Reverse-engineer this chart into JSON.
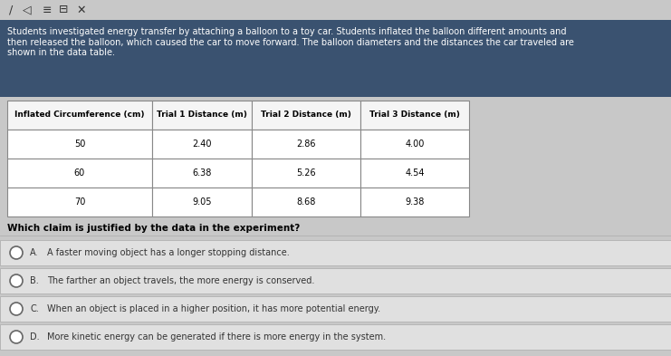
{
  "header_bg": "#3a5270",
  "header_text_color": "#ffffff",
  "header_text": "Students investigated energy transfer by attaching a balloon to a toy car. Students inflated the balloon different amounts and\nthen released the balloon, which caused the car to move forward. The balloon diameters and the distances the car traveled are\nshown in the data table.",
  "table_headers": [
    "Inflated Circumference (cm)",
    "Trial 1 Distance (m)",
    "Trial 2 Distance (m)",
    "Trial 3 Distance (m)"
  ],
  "table_data": [
    [
      "50",
      "2.40",
      "2.86",
      "4.00"
    ],
    [
      "60",
      "6.38",
      "5.26",
      "4.54"
    ],
    [
      "70",
      "9.05",
      "8.68",
      "9.38"
    ]
  ],
  "question": "Which claim is justified by the data in the experiment?",
  "choices": [
    [
      "A.",
      "A faster moving object has a longer stopping distance."
    ],
    [
      "B.",
      "The farther an object travels, the more energy is conserved."
    ],
    [
      "C.",
      "When an object is placed in a higher position, it has more potential energy."
    ],
    [
      "D.",
      "More kinetic energy can be generated if there is more energy in the system."
    ]
  ],
  "bg_color": "#c8c8c8",
  "table_border_color": "#888888",
  "choice_bg": "#e0e0e0",
  "choice_border": "#aaaaaa"
}
